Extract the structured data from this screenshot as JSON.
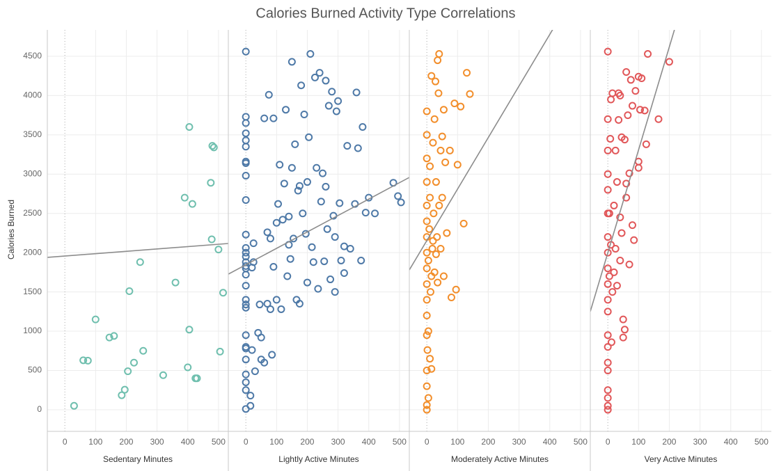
{
  "chart_data": {
    "type": "scatter",
    "title": "Calories Burned Activity Type Correlations",
    "y_label": "Calories Burned",
    "ylim": [
      -275,
      4836
    ],
    "yticks": [
      0,
      500,
      1000,
      1500,
      2000,
      2500,
      3000,
      3500,
      4000,
      4500
    ],
    "xlim": [
      -57,
      532
    ],
    "xticks": [
      0,
      100,
      200,
      300,
      400,
      500
    ],
    "grid": true,
    "panels": [
      {
        "x_label": "Sedentary Minutes",
        "color": "#6fbfae",
        "trend": {
          "intercept": 1957,
          "slope": 0.3
        },
        "x": [
          30,
          60,
          75,
          100,
          145,
          160,
          185,
          195,
          205,
          210,
          225,
          245,
          255,
          320,
          360,
          390,
          400,
          405,
          405,
          415,
          425,
          430,
          475,
          478,
          480,
          485,
          500,
          505,
          515
        ],
        "y": [
          50,
          630,
          625,
          1150,
          920,
          940,
          185,
          255,
          490,
          1510,
          600,
          1880,
          750,
          440,
          1620,
          2700,
          540,
          1020,
          3600,
          2620,
          400,
          400,
          2890,
          2170,
          3360,
          3340,
          2040,
          740,
          1490
        ]
      },
      {
        "x_label": "Lightly Active Minutes",
        "color": "#4e79a7",
        "trend": {
          "intercept": 1846,
          "slope": 2.09
        },
        "x": [
          0,
          0,
          0,
          0,
          0,
          0,
          0,
          0,
          0,
          0,
          0,
          0,
          0,
          0,
          0,
          0,
          0,
          0,
          0,
          0,
          0,
          0,
          0,
          0,
          0,
          0,
          0,
          0,
          0,
          0,
          15,
          15,
          20,
          20,
          25,
          25,
          30,
          40,
          45,
          50,
          50,
          60,
          60,
          70,
          70,
          75,
          80,
          80,
          85,
          90,
          90,
          100,
          100,
          105,
          110,
          115,
          120,
          125,
          130,
          135,
          140,
          145,
          150,
          150,
          155,
          160,
          165,
          170,
          175,
          180,
          185,
          190,
          195,
          200,
          205,
          210,
          215,
          220,
          225,
          230,
          235,
          240,
          245,
          250,
          255,
          260,
          265,
          270,
          275,
          280,
          285,
          290,
          295,
          300,
          305,
          310,
          320,
          330,
          340,
          355,
          360,
          365,
          375,
          380,
          390,
          400,
          420,
          480,
          495,
          505,
          200,
          175,
          260,
          140,
          320,
          290
        ],
        "y": [
          4560,
          3730,
          3650,
          3520,
          3430,
          3350,
          3160,
          3140,
          2980,
          2670,
          2230,
          2060,
          2000,
          1950,
          1880,
          1830,
          1800,
          1720,
          1580,
          1400,
          1340,
          1300,
          950,
          800,
          780,
          640,
          450,
          350,
          250,
          10,
          50,
          180,
          760,
          1810,
          2120,
          1880,
          490,
          980,
          1340,
          640,
          920,
          600,
          3710,
          2260,
          1350,
          4010,
          2180,
          1280,
          700,
          1820,
          3710,
          1400,
          2380,
          2620,
          3120,
          1280,
          2420,
          2880,
          3820,
          1700,
          2460,
          1920,
          4430,
          3080,
          2180,
          3380,
          1400,
          2790,
          1350,
          4130,
          2500,
          3760,
          2240,
          1620,
          3470,
          4530,
          2070,
          1880,
          4230,
          3080,
          1540,
          4290,
          2650,
          3010,
          1890,
          4190,
          2300,
          3870,
          1660,
          4050,
          2470,
          2200,
          3800,
          3930,
          2630,
          1900,
          2080,
          3360,
          2050,
          2620,
          4040,
          3330,
          1900,
          3600,
          2510,
          2700,
          2500,
          2890,
          2720,
          2640,
          2900,
          2850,
          2840,
          2100,
          1740,
          1500
        ]
      },
      {
        "x_label": "Moderately Active Minutes",
        "color": "#f28e2b",
        "trend": {
          "intercept": 2154,
          "slope": 6.56
        },
        "x": [
          0,
          0,
          0,
          0,
          0,
          0,
          0,
          0,
          0,
          0,
          0,
          0,
          0,
          0,
          0,
          0,
          0,
          2,
          5,
          5,
          8,
          10,
          10,
          12,
          15,
          15,
          18,
          20,
          20,
          22,
          25,
          25,
          28,
          30,
          30,
          33,
          35,
          38,
          40,
          40,
          45,
          45,
          50,
          55,
          60,
          65,
          75,
          80,
          90,
          95,
          100,
          110,
          120,
          130,
          140,
          55,
          50,
          35,
          15,
          10,
          5
        ],
        "y": [
          300,
          500,
          950,
          1200,
          1400,
          1600,
          1800,
          2000,
          2200,
          2400,
          2600,
          2900,
          3200,
          3500,
          3800,
          60,
          0,
          760,
          1000,
          1900,
          2300,
          3100,
          2700,
          1500,
          4250,
          1700,
          2050,
          3400,
          2150,
          2500,
          3700,
          1750,
          4180,
          2900,
          1980,
          2200,
          4450,
          4030,
          4530,
          2600,
          3300,
          2050,
          3480,
          1700,
          3150,
          2250,
          3300,
          1430,
          3900,
          1530,
          3120,
          3860,
          2370,
          4290,
          4020,
          3820,
          2700,
          1620,
          520,
          650,
          150
        ]
      },
      {
        "x_label": "Very Active Minutes",
        "color": "#e15759",
        "trend": {
          "intercept": 1998,
          "slope": 13.1
        },
        "x": [
          0,
          0,
          0,
          0,
          0,
          0,
          0,
          0,
          0,
          0,
          0,
          0,
          0,
          0,
          0,
          0,
          0,
          0,
          0,
          0,
          5,
          5,
          8,
          10,
          10,
          12,
          15,
          15,
          20,
          20,
          25,
          25,
          30,
          30,
          35,
          35,
          40,
          40,
          45,
          40,
          50,
          50,
          55,
          55,
          60,
          60,
          65,
          70,
          70,
          75,
          80,
          80,
          85,
          90,
          100,
          100,
          105,
          110,
          120,
          125,
          130,
          165,
          200,
          100,
          60,
          45
        ],
        "y": [
          4560,
          3700,
          3300,
          3000,
          2800,
          2500,
          2200,
          2000,
          1800,
          1600,
          1400,
          1250,
          950,
          800,
          600,
          500,
          250,
          150,
          50,
          0,
          2500,
          1700,
          3450,
          2100,
          3950,
          860,
          4030,
          1500,
          2600,
          1750,
          3300,
          2050,
          2900,
          1580,
          4030,
          3690,
          2450,
          1900,
          2250,
          4000,
          1150,
          920,
          3440,
          1020,
          4300,
          2880,
          3750,
          3010,
          1850,
          4200,
          3870,
          2350,
          2160,
          4060,
          3160,
          4240,
          3820,
          4220,
          3810,
          3380,
          4530,
          3700,
          4430,
          3080,
          2700,
          3470
        ]
      }
    ]
  }
}
